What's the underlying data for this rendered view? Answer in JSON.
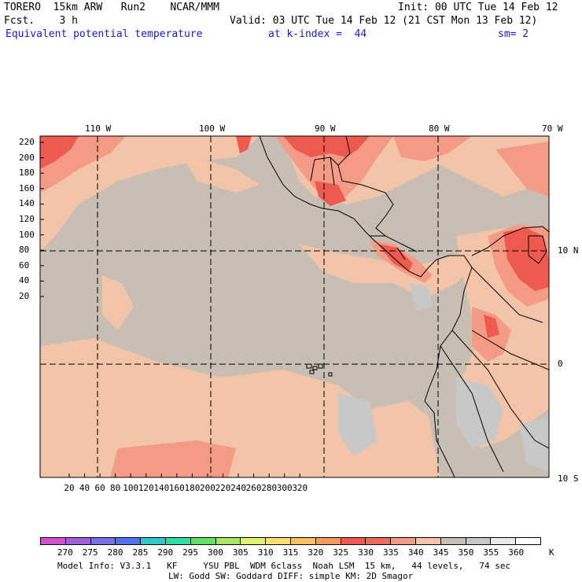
{
  "header": {
    "line1_left": "TORERO  15km ARW   Run2    NCAR/MMM",
    "line1_right": "Init: 00 UTC Tue 14 Feb 12",
    "line2_left": "Fcst.    3 h",
    "line2_right": "Valid: 03 UTC Tue 14 Feb 12 (21 CST Mon 13 Feb 12)",
    "line3_field": "Equivalent potential temperature",
    "line3_level": "at k-index =  44",
    "line3_smooth": "sm= 2"
  },
  "map": {
    "top_lon_labels": [
      "110 W",
      "100 W",
      "90 W",
      "80 W",
      "70 W"
    ],
    "right_lat_labels": [
      "10 N",
      "0",
      "10 S"
    ],
    "left_grid_labels": [
      "220",
      "200",
      "180",
      "160",
      "140",
      "120",
      "100",
      "80",
      "60",
      "40",
      "20"
    ],
    "bottom_grid_labels": [
      "20",
      "40",
      "60",
      "80",
      "100",
      "120",
      "140",
      "160",
      "180",
      "200",
      "220",
      "240",
      "260",
      "280",
      "300",
      "320"
    ],
    "field_colors": {
      "background": "#c8beb4",
      "tan": "#f2c4a8",
      "salmon": "#f49b86",
      "red": "#ee5a50",
      "gray": "#c8c8c8",
      "land_outline": "#000000"
    }
  },
  "colorbar": {
    "labels": [
      "270",
      "275",
      "280",
      "285",
      "290",
      "295",
      "300",
      "305",
      "310",
      "315",
      "320",
      "325",
      "330",
      "335",
      "340",
      "345",
      "350",
      "355",
      "360"
    ],
    "unit": "K",
    "colors": [
      "#d050d0",
      "#a060d8",
      "#7a70e8",
      "#5070f0",
      "#30c8c8",
      "#30e0a0",
      "#60e060",
      "#a8e860",
      "#e0f070",
      "#f8e070",
      "#f4c060",
      "#f29a5a",
      "#ee5a50",
      "#f06a5c",
      "#f49b86",
      "#f2c4a8",
      "#c8beb4",
      "#c8c8c8",
      "#e8e8e8",
      "#ffffff"
    ]
  },
  "footer": {
    "line1": "Model Info: V3.3.1   KF     YSU PBL  WDM 6class  Noah LSM  15 km,   44 levels,   74 sec",
    "line2": "LW: Godd SW: Goddard DIFF: simple KM: 2D Smagor"
  }
}
